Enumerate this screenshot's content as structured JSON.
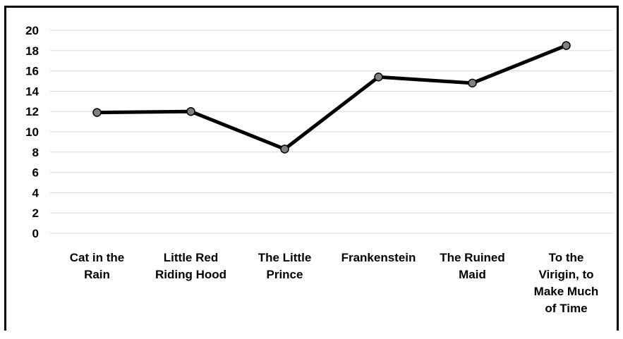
{
  "chart_data": {
    "type": "line",
    "title": "",
    "xlabel": "",
    "ylabel": "",
    "categories": [
      [
        "Cat in the",
        "Rain"
      ],
      [
        "Little Red",
        "Riding Hood"
      ],
      [
        "The Little",
        "Prince"
      ],
      [
        "Frankenstein"
      ],
      [
        "The Ruined",
        "Maid"
      ],
      [
        "To the",
        "Virigin, to",
        "Make Much",
        "of Time"
      ]
    ],
    "category_names": [
      "Cat in the Rain",
      "Little Red Riding Hood",
      "The Little Prince",
      "Frankenstein",
      "The Ruined Maid",
      "To the Virigin, to Make Much of Time"
    ],
    "values": [
      11.9,
      12.0,
      8.3,
      15.4,
      14.8,
      18.5
    ],
    "ylim": [
      0,
      20
    ],
    "yticks": [
      0,
      2,
      4,
      6,
      8,
      10,
      12,
      14,
      16,
      18,
      20
    ],
    "grid": true,
    "legend": "none",
    "line_color": "#000000",
    "marker_color": "#808080",
    "grid_color": "#d9d9d9"
  }
}
